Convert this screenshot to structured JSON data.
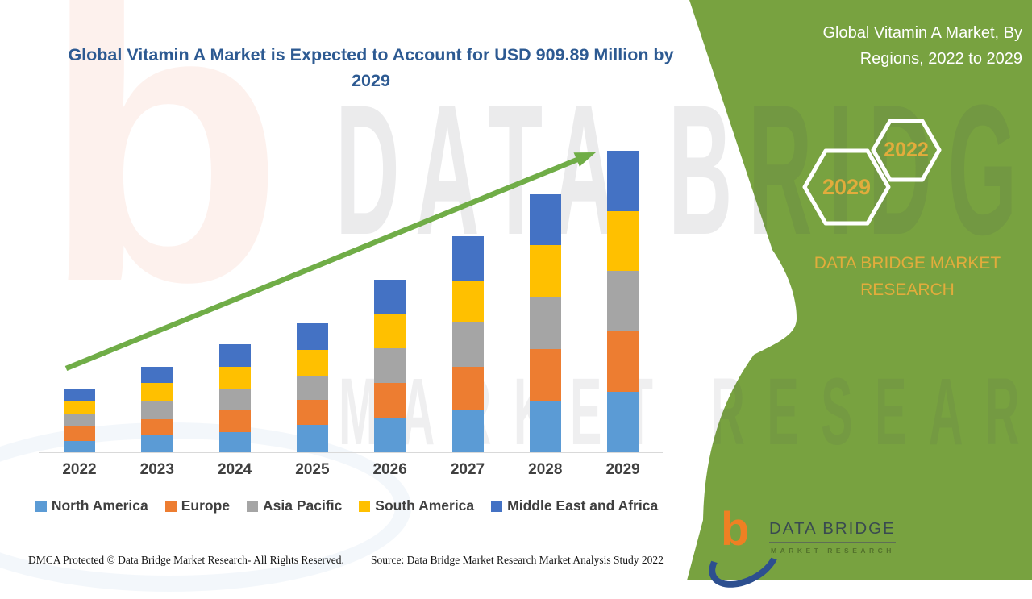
{
  "header": {
    "title": "Global Vitamin A Market is Expected to Account for USD 909.89 Million by 2029"
  },
  "side_panel": {
    "bg_color": "#78A240",
    "heading": "Global Vitamin A Market, By Regions, 2022 to 2029",
    "hexagon_years": {
      "large": "2029",
      "small": "2022"
    },
    "brand_text": "DATA BRIDGE MARKET RESEARCH",
    "gold_color": "#E2AC3C"
  },
  "chart_data": {
    "type": "bar",
    "stacked": true,
    "unit": "USD Million",
    "title": "Global Vitamin A Market, By Regions, 2022 to 2029",
    "categories": [
      "2022",
      "2023",
      "2024",
      "2025",
      "2026",
      "2027",
      "2028",
      "2029"
    ],
    "series": [
      {
        "name": "North America",
        "color": "#5B9BD5",
        "values": [
          33,
          50,
          61,
          82,
          101,
          127,
          154,
          182
        ]
      },
      {
        "name": "Europe",
        "color": "#ED7D31",
        "values": [
          44,
          50,
          67,
          75,
          107,
          130,
          156,
          182
        ]
      },
      {
        "name": "Asia Pacific",
        "color": "#A5A5A5",
        "values": [
          39,
          55,
          63,
          71,
          105,
          135,
          160,
          182
        ]
      },
      {
        "name": "South America",
        "color": "#FFC000",
        "values": [
          36,
          54,
          67,
          81,
          105,
          125,
          154,
          182
        ]
      },
      {
        "name": "Middle East and Africa",
        "color": "#4472C4",
        "values": [
          37,
          49,
          67,
          81,
          102,
          134,
          154,
          181.89
        ]
      }
    ],
    "totals": [
      189,
      258,
      325,
      390,
      520,
      651,
      778,
      909.89
    ],
    "y_axis_visible": false,
    "grid": false,
    "legend_position": "bottom",
    "trend_arrow_color": "#70AD47",
    "axis_color": "#D9D9D9"
  },
  "watermark": {
    "letter": "b",
    "line1": "DATA BRIDGE",
    "line2": "MARKET RESEARCH"
  },
  "footer": {
    "dmca": "DMCA Protected © Data Bridge Market Research- All Rights Reserved.",
    "source": "Source: Data Bridge Market Research Market Analysis Study 2022"
  },
  "logo": {
    "glyph": "b",
    "name": "DATA BRIDGE",
    "tagline": "MARKET RESEARCH"
  }
}
